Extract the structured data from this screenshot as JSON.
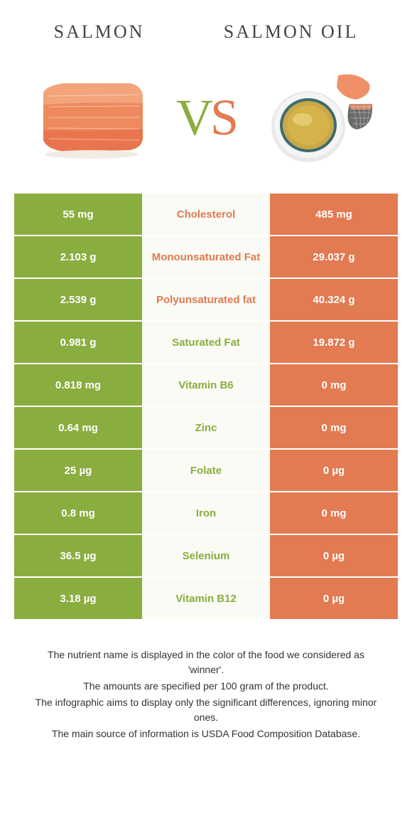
{
  "header": {
    "left_title": "SALMON",
    "right_title": "SALMON OIL"
  },
  "vs": {
    "v": "V",
    "s": "S"
  },
  "colors": {
    "left": "#8aad3f",
    "right": "#e27a52",
    "mid_bg": "#f9fbf4",
    "white": "#ffffff"
  },
  "rows": [
    {
      "nutrient": "Cholesterol",
      "left": "55 mg",
      "right": "485 mg",
      "winner": "right"
    },
    {
      "nutrient": "Monounsaturated Fat",
      "left": "2.103 g",
      "right": "29.037 g",
      "winner": "right"
    },
    {
      "nutrient": "Polyunsaturated fat",
      "left": "2.539 g",
      "right": "40.324 g",
      "winner": "right"
    },
    {
      "nutrient": "Saturated Fat",
      "left": "0.981 g",
      "right": "19.872 g",
      "winner": "left"
    },
    {
      "nutrient": "Vitamin B6",
      "left": "0.818 mg",
      "right": "0 mg",
      "winner": "left"
    },
    {
      "nutrient": "Zinc",
      "left": "0.64 mg",
      "right": "0 mg",
      "winner": "left"
    },
    {
      "nutrient": "Folate",
      "left": "25 µg",
      "right": "0 µg",
      "winner": "left"
    },
    {
      "nutrient": "Iron",
      "left": "0.8 mg",
      "right": "0 mg",
      "winner": "left"
    },
    {
      "nutrient": "Selenium",
      "left": "36.5 µg",
      "right": "0 µg",
      "winner": "left"
    },
    {
      "nutrient": "Vitamin B12",
      "left": "3.18 µg",
      "right": "0 µg",
      "winner": "left"
    }
  ],
  "footer": {
    "l1": "The nutrient name is displayed in the color of the food we considered as 'winner'.",
    "l2": "The amounts are specified per 100 gram of the product.",
    "l3": "The infographic aims to display only the significant differences, ignoring minor ones.",
    "l4": "The main source of information is USDA Food Composition Database."
  }
}
